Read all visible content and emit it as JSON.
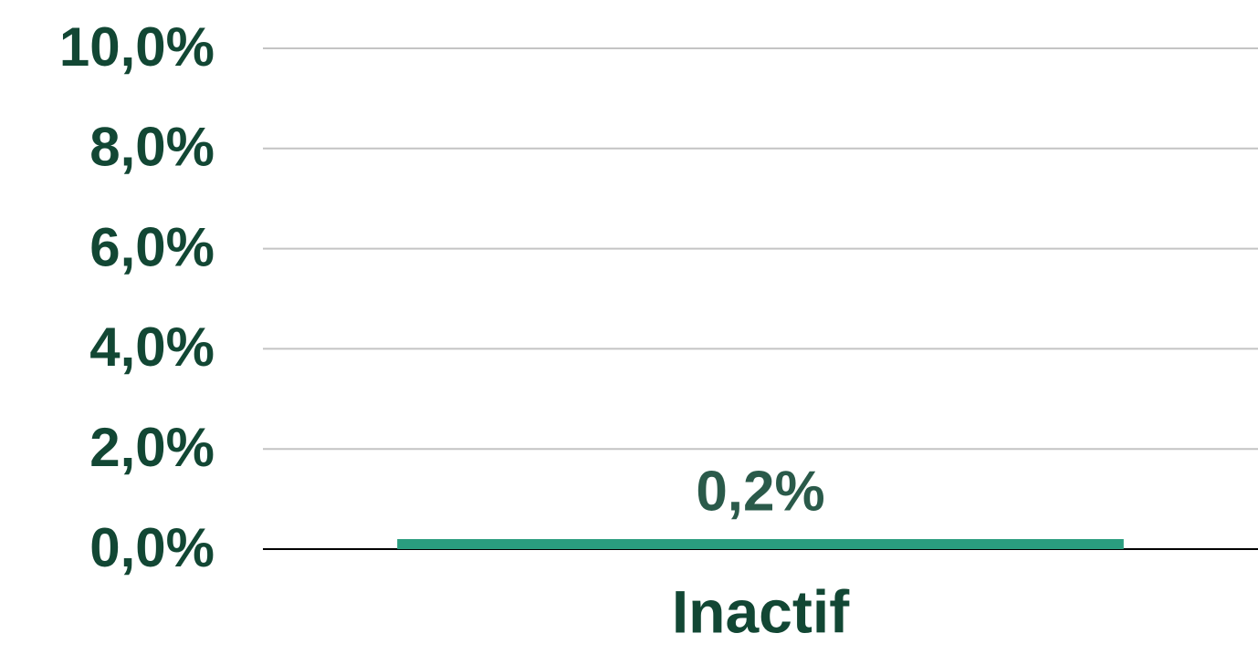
{
  "chart_data": {
    "type": "bar",
    "categories": [
      "Inactif"
    ],
    "values": [
      0.2
    ],
    "value_labels": [
      "0,2%"
    ],
    "color": "#2a9d7f",
    "ylim": [
      0,
      10
    ],
    "yticks": [
      {
        "value": 0,
        "label": "0,0%"
      },
      {
        "value": 2,
        "label": "2,0%"
      },
      {
        "value": 4,
        "label": "4,0%"
      },
      {
        "value": 6,
        "label": "6,0%"
      },
      {
        "value": 8,
        "label": "8,0%"
      },
      {
        "value": 10,
        "label": "10,0%"
      }
    ],
    "grid": true
  }
}
